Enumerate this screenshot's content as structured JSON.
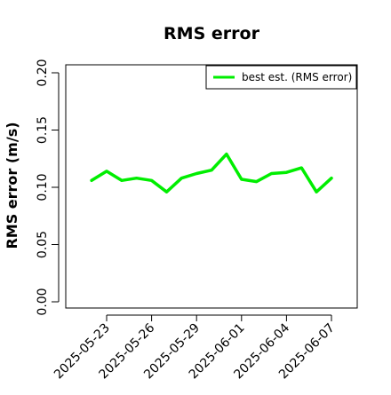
{
  "chart_data": {
    "type": "line",
    "title": "RMS error",
    "xlabel": "",
    "ylabel": "RMS error (m/s)",
    "ylim": [
      0,
      0.21
    ],
    "xlim": [
      "2025-05-21",
      "2025-06-08"
    ],
    "grid": false,
    "legend_position": "top-right",
    "y_ticks": [
      "0.00",
      "0.05",
      "0.10",
      "0.15",
      "0.20"
    ],
    "x_ticks": [
      {
        "date": "2025-05-23",
        "label": "2025-05-23",
        "color": "#000000"
      },
      {
        "date": "2025-05-26",
        "label": "2025-05-26",
        "color": "#000000"
      },
      {
        "date": "2025-05-29",
        "label": "2025-05-29",
        "color": "#228B22"
      },
      {
        "date": "2025-06-01",
        "label": "2025-06-01",
        "color": "#000000"
      },
      {
        "date": "2025-06-04",
        "label": "2025-06-04",
        "color": "#000000"
      },
      {
        "date": "2025-06-07",
        "label": "2025-06-07",
        "color": "#000000"
      }
    ],
    "series": [
      {
        "name": "best est. (RMS error)",
        "color": "#00ee00",
        "x": [
          "2025-05-22",
          "2025-05-23",
          "2025-05-24",
          "2025-05-25",
          "2025-05-26",
          "2025-05-27",
          "2025-05-28",
          "2025-05-29",
          "2025-05-30",
          "2025-05-31",
          "2025-06-01",
          "2025-06-02",
          "2025-06-03",
          "2025-06-04",
          "2025-06-05",
          "2025-06-06",
          "2025-06-07"
        ],
        "values": [
          0.106,
          0.114,
          0.106,
          0.108,
          0.106,
          0.096,
          0.108,
          0.112,
          0.115,
          0.129,
          0.107,
          0.105,
          0.112,
          0.113,
          0.117,
          0.096,
          0.108
        ]
      }
    ]
  }
}
